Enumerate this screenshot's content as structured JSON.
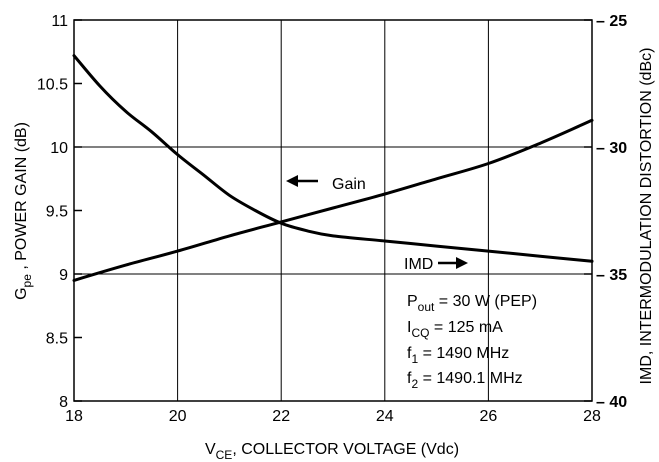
{
  "chart_data": {
    "type": "line",
    "xlabel": {
      "main": "V",
      "sub": "CE",
      "rest": ", COLLECTOR VOLTAGE (Vdc)"
    },
    "ylabel_left": {
      "main": "G",
      "sub": "pe",
      "rest": " , POWER GAIN (dB)"
    },
    "ylabel_right": "IMD, INTERMODULATION DISTORTION (dBc)",
    "xlim": [
      18,
      28
    ],
    "ylim_left": [
      8,
      11
    ],
    "ylim_right": [
      -25,
      -40
    ],
    "x_ticks": [
      "18",
      "20",
      "22",
      "24",
      "26",
      "28"
    ],
    "y_left_ticks": [
      "8",
      "8.5",
      "9",
      "9.5",
      "10",
      "10.5",
      "11"
    ],
    "y_right_ticks": [
      "– 25",
      "– 30",
      "– 35",
      "– 40"
    ],
    "grid": true,
    "series": [
      {
        "name": "Gain",
        "axis": "left",
        "x": [
          18,
          19,
          20,
          21,
          22,
          23,
          24,
          25,
          26,
          27,
          28
        ],
        "y": [
          8.95,
          9.07,
          9.18,
          9.3,
          9.41,
          9.52,
          9.63,
          9.75,
          9.87,
          10.03,
          10.21
        ]
      },
      {
        "name": "IMD",
        "axis": "right",
        "x": [
          18,
          18.5,
          19,
          19.5,
          20,
          20.5,
          21,
          21.5,
          22,
          22.5,
          23,
          24,
          25,
          26,
          27,
          28
        ],
        "y": [
          -26.4,
          -27.6,
          -28.6,
          -29.4,
          -30.3,
          -31.1,
          -31.9,
          -32.5,
          -33,
          -33.3,
          -33.5,
          -33.7,
          -33.9,
          -34.1,
          -34.3,
          -34.5
        ]
      }
    ],
    "annotations": {
      "gain_label": "Gain",
      "imd_label": "IMD",
      "conditions": [
        {
          "main": "P",
          "sub": "out",
          "rest": " = 30 W (PEP)"
        },
        {
          "main": "I",
          "sub": "CQ",
          "rest": " = 125 mA"
        },
        {
          "main": "f",
          "sub": "1",
          "rest": " = 1490 MHz"
        },
        {
          "main": "f",
          "sub": "2",
          "rest": " = 1490.1 MHz"
        }
      ]
    }
  }
}
